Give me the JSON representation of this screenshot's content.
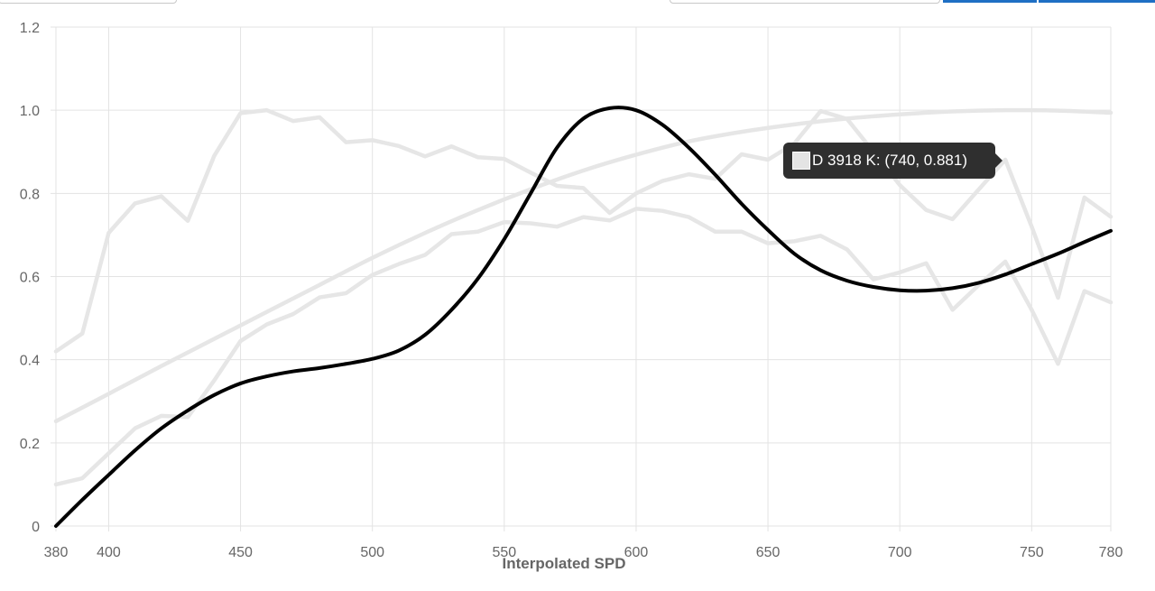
{
  "chart_data": {
    "type": "line",
    "xlabel": "Interpolated SPD",
    "ylabel": "",
    "xlim": [
      380,
      780
    ],
    "ylim": [
      0,
      1.2
    ],
    "x_ticks": [
      "380",
      "400",
      "450",
      "500",
      "550",
      "600",
      "650",
      "700",
      "750",
      "780"
    ],
    "y_ticks": [
      "0",
      "0.2",
      "0.4",
      "0.6",
      "0.8",
      "1.0",
      "1.2"
    ],
    "grid": true,
    "series": [
      {
        "color": "#e6e6e6",
        "smooth": false,
        "x": [
          380,
          390,
          400,
          410,
          420,
          430,
          440,
          450,
          460,
          470,
          480,
          490,
          500,
          510,
          520,
          530,
          540,
          550,
          560,
          570,
          580,
          590,
          600,
          610,
          620,
          630,
          640,
          650,
          660,
          670,
          680,
          690,
          700,
          710,
          720,
          730,
          740,
          750,
          760,
          770,
          780
        ],
        "y": [
          0.42,
          0.463,
          0.705,
          0.776,
          0.793,
          0.734,
          0.89,
          0.993,
          1.0,
          0.974,
          0.983,
          0.923,
          0.928,
          0.914,
          0.889,
          0.913,
          0.887,
          0.883,
          0.85,
          0.818,
          0.813,
          0.753,
          0.8,
          0.83,
          0.846,
          0.835,
          0.894,
          0.881,
          0.92,
          0.998,
          0.979,
          0.9,
          0.82,
          0.76,
          0.738,
          0.81,
          0.881,
          0.72,
          0.549,
          0.79,
          0.744
        ]
      },
      {
        "color": "#e6e6e6",
        "smooth": false,
        "x": [
          380,
          390,
          400,
          410,
          420,
          430,
          440,
          450,
          460,
          470,
          480,
          490,
          500,
          510,
          520,
          530,
          540,
          550,
          560,
          570,
          580,
          590,
          600,
          610,
          620,
          630,
          640,
          650,
          660,
          670,
          680,
          690,
          700,
          710,
          720,
          730,
          740,
          750,
          760,
          770,
          780
        ],
        "y": [
          0.1,
          0.115,
          0.175,
          0.235,
          0.265,
          0.262,
          0.35,
          0.445,
          0.485,
          0.51,
          0.55,
          0.56,
          0.604,
          0.63,
          0.652,
          0.702,
          0.708,
          0.731,
          0.728,
          0.72,
          0.743,
          0.735,
          0.763,
          0.758,
          0.743,
          0.708,
          0.708,
          0.68,
          0.685,
          0.698,
          0.665,
          0.593,
          0.61,
          0.632,
          0.52,
          0.58,
          0.636,
          0.52,
          0.39,
          0.565,
          0.538
        ]
      },
      {
        "color": "#e6e6e6",
        "smooth": true,
        "x": [
          380,
          400,
          420,
          440,
          460,
          480,
          500,
          520,
          540,
          560,
          580,
          600,
          620,
          640,
          660,
          680,
          700,
          720,
          740,
          760,
          780
        ],
        "y": [
          0.252,
          0.318,
          0.385,
          0.45,
          0.515,
          0.58,
          0.645,
          0.705,
          0.76,
          0.81,
          0.855,
          0.893,
          0.925,
          0.948,
          0.966,
          0.98,
          0.99,
          0.997,
          1.0,
          0.999,
          0.994
        ]
      },
      {
        "color": "#000000",
        "smooth": true,
        "x": [
          380,
          390,
          400,
          410,
          420,
          430,
          440,
          450,
          460,
          470,
          480,
          490,
          500,
          510,
          520,
          530,
          540,
          550,
          560,
          570,
          580,
          590,
          600,
          610,
          620,
          630,
          640,
          650,
          660,
          670,
          680,
          690,
          700,
          710,
          720,
          730,
          740,
          750,
          760,
          770,
          780
        ],
        "y": [
          0,
          0.063,
          0.123,
          0.182,
          0.235,
          0.278,
          0.315,
          0.343,
          0.36,
          0.372,
          0.38,
          0.39,
          0.402,
          0.422,
          0.46,
          0.52,
          0.595,
          0.69,
          0.8,
          0.91,
          0.98,
          1.005,
          1.0,
          0.965,
          0.91,
          0.845,
          0.775,
          0.712,
          0.655,
          0.615,
          0.59,
          0.575,
          0.567,
          0.566,
          0.572,
          0.585,
          0.605,
          0.63,
          0.655,
          0.683,
          0.71
        ]
      }
    ],
    "tooltip": {
      "label": "D 3918 K: (740, 0.881)",
      "swatch_color": "#e4e4e4"
    }
  }
}
